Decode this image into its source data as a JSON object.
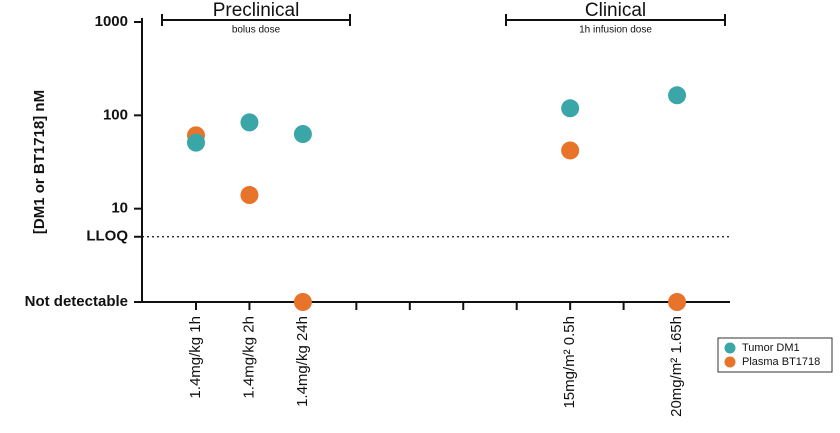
{
  "chart_data": {
    "type": "scatter",
    "y_label": "[DM1 or BT1718] nM",
    "categories": [
      "1.4mg/kg 1h",
      "1.4mg/kg 2h",
      "1.4mg/kg 24h",
      null,
      null,
      null,
      null,
      "15mg/m² 0.5h",
      null,
      "20mg/m² 1.65h"
    ],
    "series": [
      {
        "name": "Tumor DM1",
        "color": "#3aa6a8",
        "values": [
          51,
          84,
          63,
          null,
          null,
          null,
          null,
          119,
          null,
          164
        ]
      },
      {
        "name": "Plasma BT1718",
        "color": "#e8732a",
        "values": [
          61,
          14,
          1,
          null,
          null,
          null,
          null,
          42,
          null,
          1
        ]
      }
    ],
    "ylim": [
      1,
      1000
    ],
    "yscale": "log",
    "yticks": [
      {
        "value": 1,
        "label": "Not detectable"
      },
      {
        "value": 5,
        "label": "LLOQ"
      },
      10,
      100,
      1000
    ],
    "annotations": [
      {
        "text": "Preclinical",
        "subtext": "bolus dose"
      },
      {
        "text": "Clinical",
        "subtext": "1h infusion dose"
      }
    ],
    "legend": "bottom-right"
  }
}
